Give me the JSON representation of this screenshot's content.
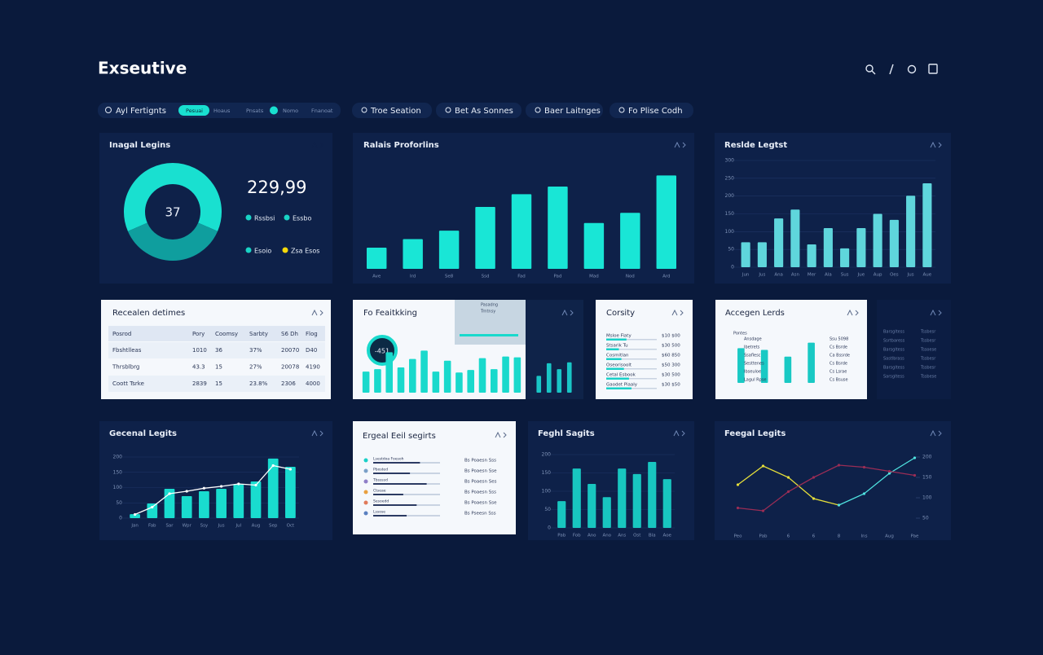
{
  "header": {
    "title": "Exseutive"
  },
  "filters": {
    "search": "Ayl Fertignts",
    "pills": [
      "Pesuai",
      "Hoaus",
      "Pnsats",
      "Nomo",
      "Fnanoat"
    ],
    "buttons": [
      "Troe Seation",
      "Bet As Sonnes",
      "Baer Laitnges",
      "Fo Plise Codh"
    ]
  },
  "donut_panel": {
    "title": "Inagal Legins",
    "value": 37,
    "total": "229,99",
    "color": "#19e0d0",
    "dark_color": "#0f9e9e",
    "legend": [
      {
        "name": "Rssbsi",
        "color": "#19d3c5"
      },
      {
        "name": "Essbo",
        "color": "#19d3c5"
      },
      {
        "name": "Esoio",
        "color": "#19d3c5"
      },
      {
        "name": "Zsa Esos",
        "color": "#f5d90a"
      }
    ]
  },
  "sales": {
    "type": "bar",
    "title": "Ralais Proforlins",
    "categories": [
      "Ave",
      "Ird",
      "Se8",
      "Ssd",
      "Fad",
      "Pad",
      "Mad",
      "Nod",
      "Ard"
    ],
    "values": [
      25,
      35,
      45,
      73,
      88,
      97,
      54,
      66,
      110
    ],
    "ylim": [
      0,
      120
    ],
    "color": "#19e6d6"
  },
  "resale": {
    "type": "bar",
    "title": "Reslde Legtst",
    "categories": [
      "Jun",
      "Jus",
      "Ana",
      "Asn",
      "Mer",
      "Ala",
      "Sus",
      "Jue",
      "Aup",
      "Oes",
      "Jus",
      "Aue"
    ],
    "values": [
      70,
      70,
      137,
      162,
      64,
      110,
      53,
      110,
      150,
      133,
      201,
      236
    ],
    "ylim": [
      0,
      300
    ],
    "yticks": [
      0,
      50,
      100,
      150,
      200,
      250,
      300
    ],
    "grid": true,
    "color": "#5fd6dc"
  },
  "recent": {
    "title": "Recealen detimes",
    "columns": [
      "Posrod",
      "Pory",
      "Coomsy",
      "Sarbty",
      "S6 Dh",
      "Flog"
    ],
    "rows": [
      [
        "Fbshtlleas",
        "1010",
        "36",
        "37%",
        "20070",
        "D40"
      ],
      [
        "Thrsblbrg",
        "43.3",
        "15",
        "27%",
        "20078",
        "4190"
      ],
      [
        "Coott Tsrke",
        "2839",
        "15",
        "23.8%",
        "2306",
        "4000"
      ]
    ]
  },
  "tracking": {
    "type": "bar",
    "title": "Fo Feaitkking",
    "badge": "-451",
    "card": [
      "Pasadng",
      "Trntnsy"
    ],
    "values": [
      25,
      28,
      48,
      30,
      40,
      50,
      25,
      38,
      24,
      27,
      41,
      28,
      43,
      42
    ],
    "ylim": [
      0,
      60
    ],
    "color": "#19d9cc",
    "mini": {
      "values": [
        20,
        35,
        28,
        36
      ],
      "ylim": [
        0,
        60
      ],
      "color": "#19c6c6"
    }
  },
  "country": {
    "title": "Corsity",
    "rows": [
      {
        "name": "Msloe Fiaty",
        "value": "$10 $00",
        "progress": 40
      },
      {
        "name": "Stsarik Tu",
        "value": "$30 500",
        "progress": 25
      },
      {
        "name": "Cosmitlan",
        "value": "$60 850",
        "progress": 30
      },
      {
        "name": "Oseorisoolt",
        "value": "$50 300",
        "progress": 35
      },
      {
        "name": "Cetal Esbook",
        "value": "$30 500",
        "progress": 45
      },
      {
        "name": "Gaodet Piaaly",
        "value": "$30 $50",
        "progress": 50
      }
    ]
  },
  "accounts": {
    "type": "bar",
    "title": "Accegen Lerds",
    "label": "Pontes",
    "values": [
      82,
      78,
      62,
      95
    ],
    "ylim": [
      0,
      100
    ],
    "color": "#19c9c4",
    "rows": [
      {
        "name": "Ansdage",
        "value": "Ssu 5098"
      },
      {
        "name": "Ibetrets",
        "value": "Cs Bsrde"
      },
      {
        "name": "Ssaflesc",
        "value": "Ca Bssrde"
      },
      {
        "name": "Sesttenes",
        "value": "Cs Bsrde"
      },
      {
        "name": "Ibseuloe",
        "value": "Cs Lsrae"
      },
      {
        "name": "Lagul Rpse",
        "value": "Cs Bsuse"
      }
    ]
  },
  "side": {
    "rows": [
      [
        "Barsgltess",
        "Tssbesr"
      ],
      [
        "Ssrtbaress",
        "Tssbesr"
      ],
      [
        "Barsgltess",
        "Tssoese"
      ],
      [
        "Sastlbrass",
        "Tssbesr"
      ],
      [
        "Barsgltess",
        "Tssbesr"
      ],
      [
        "Sarsgltess",
        "Tssbese"
      ]
    ]
  },
  "general": {
    "type": "bar",
    "title": "Gecenal Legits",
    "categories": [
      "Jan",
      "Fab",
      "Sar",
      "Wpr",
      "Ssy",
      "Jus",
      "Jul",
      "Aug",
      "Sep",
      "Oct"
    ],
    "values": [
      13,
      48,
      96,
      72,
      88,
      96,
      112,
      120,
      195,
      168
    ],
    "line": [
      12,
      36,
      80,
      88,
      98,
      104,
      112,
      108,
      172,
      160
    ],
    "ylim": [
      0,
      200
    ],
    "yticks": [
      0,
      50,
      100,
      150,
      200
    ],
    "grid": true,
    "color": "#19dccf",
    "line_color": "#ffffff"
  },
  "ergeal": {
    "title": "Ergeal Eeil segirts",
    "rows": [
      {
        "name": "Lsestdoa Foesoh",
        "value": "Bs Poaesn Sss",
        "progress": 70
      },
      {
        "name": "Pbosted",
        "value": "Bs Poaesn Sse",
        "progress": 55
      },
      {
        "name": "Tbssssd",
        "value": "Bs Poaesn Ses",
        "progress": 80
      },
      {
        "name": "Ctseae",
        "value": "Bs Poaesn Sss",
        "progress": 45
      },
      {
        "name": "Sesoedd",
        "value": "Bs Poaesn Sse",
        "progress": 65
      },
      {
        "name": "Lssose",
        "value": "Bs Pseesn Sss",
        "progress": 50
      }
    ]
  },
  "freight": {
    "type": "bar",
    "title": "Feghl Sagits",
    "categories": [
      "Pab",
      "Fob",
      "Ano",
      "Ano",
      "Ans",
      "Ost",
      "Bla",
      "Aoe"
    ],
    "values": [
      73,
      162,
      120,
      84,
      162,
      147,
      180,
      133
    ],
    "ylim": [
      0,
      200
    ],
    "yticks": [
      0,
      50,
      100,
      150,
      200
    ],
    "grid": true,
    "color": "#18c6c0"
  },
  "fiscal": {
    "type": "line",
    "title": "Feegal Legits",
    "categories": [
      "Peo",
      "Pab",
      "6",
      "6",
      "8",
      "Ins",
      "Aug",
      "Pae"
    ],
    "ylim": [
      0,
      200
    ],
    "yticks": [
      50,
      100,
      150,
      200
    ],
    "series": [
      {
        "name": "Yellow",
        "color": "#e6df3a",
        "values": [
          132,
          178,
          150,
          98,
          82,
          null,
          null,
          null
        ]
      },
      {
        "name": "Cyan",
        "color": "#4fe3e0",
        "values": [
          null,
          null,
          null,
          null,
          82,
          110,
          160,
          198
        ]
      },
      {
        "name": "Red",
        "color": "#9a2d55",
        "values": [
          75,
          68,
          115,
          150,
          180,
          175,
          165,
          155
        ]
      }
    ]
  }
}
